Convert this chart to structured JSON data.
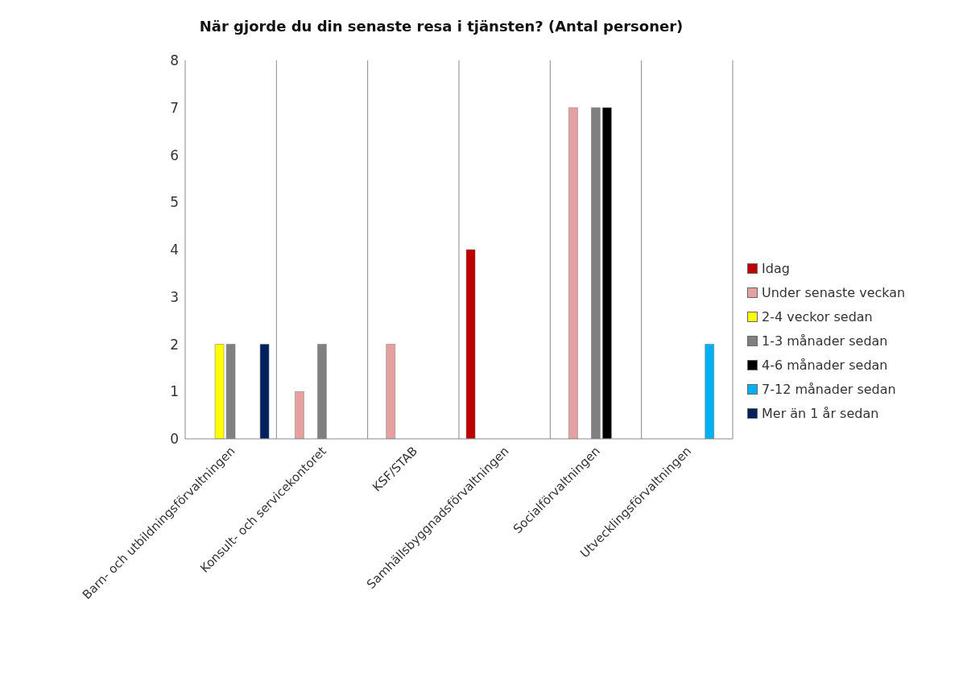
{
  "chart_data": {
    "type": "bar",
    "title": "När gjorde du din senaste resa i tjänsten? (Antal personer)",
    "categories": [
      "Barn- och utbildningsförvaltningen",
      "Konsult- och servicekontoret",
      "KSF/STAB",
      "Samhällsbyggnadsförvaltningen",
      "Socialförvaltningen",
      "Utvecklingsförvaltningen"
    ],
    "series": [
      {
        "name": "Idag",
        "color": "#c00000",
        "values": [
          null,
          null,
          null,
          4,
          null,
          null
        ]
      },
      {
        "name": "Under senaste veckan",
        "color": "#e6a0a0",
        "values": [
          null,
          1,
          2,
          null,
          7,
          null
        ]
      },
      {
        "name": "2-4 veckor sedan",
        "color": "#ffff00",
        "values": [
          2,
          null,
          null,
          null,
          null,
          null
        ]
      },
      {
        "name": "1-3 månader sedan",
        "color": "#808080",
        "values": [
          2,
          2,
          null,
          null,
          7,
          null
        ]
      },
      {
        "name": "4-6 månader sedan",
        "color": "#000000",
        "values": [
          null,
          null,
          null,
          null,
          7,
          null
        ]
      },
      {
        "name": "7-12 månader sedan",
        "color": "#00b0f0",
        "values": [
          null,
          null,
          null,
          null,
          null,
          2
        ]
      },
      {
        "name": "Mer än 1 år sedan",
        "color": "#002060",
        "values": [
          2,
          null,
          null,
          null,
          null,
          null
        ]
      }
    ],
    "ylim": [
      0,
      8
    ],
    "yticks": [
      0,
      1,
      2,
      3,
      4,
      5,
      6,
      7,
      8
    ],
    "grid": "x",
    "legend": "right"
  }
}
